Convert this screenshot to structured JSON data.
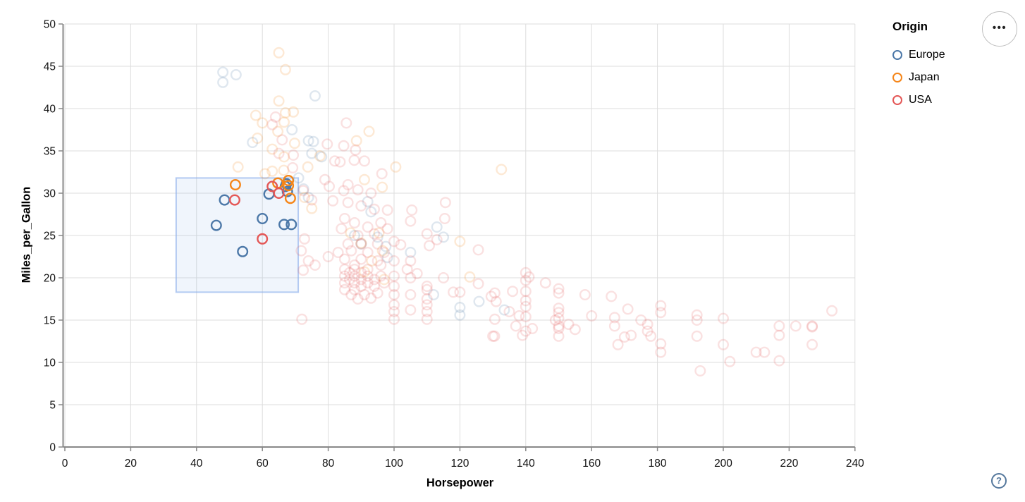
{
  "chart_data": {
    "type": "scatter",
    "xlabel": "Horsepower",
    "ylabel": "Miles_per_Gallon",
    "xlim": [
      0,
      240
    ],
    "ylim": [
      0,
      50
    ],
    "x_ticks": [
      0,
      20,
      40,
      60,
      80,
      100,
      120,
      140,
      160,
      180,
      200,
      220,
      240
    ],
    "y_ticks": [
      0,
      5,
      10,
      15,
      20,
      25,
      30,
      35,
      40,
      45,
      50
    ],
    "grid": true,
    "legend": {
      "title": "Origin",
      "position": "top-right",
      "entries": [
        {
          "label": "Europe",
          "color": "#4c78a8"
        },
        {
          "label": "Japan",
          "color": "#f58518"
        },
        {
          "label": "USA",
          "color": "#e45756"
        }
      ]
    },
    "origins": [
      "Europe",
      "Japan",
      "USA"
    ],
    "colors": [
      "#4c78a8",
      "#f58518",
      "#e45756"
    ],
    "unselected_opacity": 0.18,
    "brush": {
      "x": [
        33.8,
        70.9
      ],
      "y": [
        18.3,
        31.8
      ]
    },
    "points": [
      [
        46,
        26.2,
        0,
        1
      ],
      [
        48.5,
        29.2,
        0,
        1
      ],
      [
        54,
        23.1,
        0,
        1
      ],
      [
        60,
        27,
        0,
        1
      ],
      [
        62,
        29.9,
        0,
        1
      ],
      [
        67,
        30.8,
        0,
        1
      ],
      [
        67.3,
        31.1,
        0,
        1
      ],
      [
        67.6,
        30.2,
        0,
        1
      ],
      [
        66.6,
        26.3,
        0,
        1
      ],
      [
        68.8,
        26.3,
        0,
        1
      ],
      [
        51.8,
        31,
        1,
        1
      ],
      [
        64.7,
        31.2,
        1,
        1
      ],
      [
        67.9,
        31.5,
        1,
        1
      ],
      [
        67.9,
        30.9,
        1,
        1
      ],
      [
        68.5,
        29.4,
        1,
        1
      ],
      [
        51.6,
        29.2,
        2,
        1
      ],
      [
        63,
        30.8,
        2,
        1
      ],
      [
        65,
        30,
        2,
        1
      ],
      [
        60,
        24.6,
        2,
        1
      ],
      [
        48,
        43.1,
        0,
        0
      ],
      [
        48,
        44.3,
        0,
        0
      ],
      [
        52,
        44,
        0,
        0
      ],
      [
        76,
        41.5,
        0,
        0
      ],
      [
        57,
        36,
        0,
        0
      ],
      [
        69,
        37.5,
        0,
        0
      ],
      [
        74,
        36.2,
        0,
        0
      ],
      [
        75.5,
        36.1,
        0,
        0
      ],
      [
        75,
        34.7,
        0,
        0
      ],
      [
        78,
        34.3,
        0,
        0
      ],
      [
        71,
        31.8,
        0,
        0
      ],
      [
        72.5,
        30.5,
        0,
        0
      ],
      [
        74,
        29.5,
        0,
        0
      ],
      [
        92,
        29,
        0,
        0
      ],
      [
        93,
        27.8,
        0,
        0
      ],
      [
        88,
        25,
        0,
        0
      ],
      [
        95,
        24.8,
        0,
        0
      ],
      [
        90,
        24,
        0,
        0
      ],
      [
        113,
        26,
        0,
        0
      ],
      [
        115,
        24.8,
        0,
        0
      ],
      [
        97.5,
        23.7,
        0,
        0
      ],
      [
        98,
        22.4,
        0,
        0
      ],
      [
        105,
        23,
        0,
        0
      ],
      [
        112,
        18,
        0,
        0
      ],
      [
        120,
        16.5,
        0,
        0
      ],
      [
        125.8,
        17.2,
        0,
        0
      ],
      [
        133.5,
        16.2,
        0,
        0
      ],
      [
        120,
        15.6,
        0,
        0
      ],
      [
        65,
        46.6,
        1,
        0
      ],
      [
        67,
        44.6,
        1,
        0
      ],
      [
        65,
        40.9,
        1,
        0
      ],
      [
        67,
        39.5,
        1,
        0
      ],
      [
        58,
        39.2,
        1,
        0
      ],
      [
        69.4,
        39.6,
        1,
        0
      ],
      [
        60,
        38.3,
        1,
        0
      ],
      [
        66.6,
        38.4,
        1,
        0
      ],
      [
        58.5,
        36.5,
        1,
        0
      ],
      [
        64.7,
        37.3,
        1,
        0
      ],
      [
        69.8,
        35.9,
        1,
        0
      ],
      [
        63,
        35.2,
        1,
        0
      ],
      [
        66.6,
        34.3,
        1,
        0
      ],
      [
        77.5,
        34.4,
        1,
        0
      ],
      [
        92.4,
        37.3,
        1,
        0
      ],
      [
        88.6,
        36.2,
        1,
        0
      ],
      [
        52.6,
        33.1,
        1,
        0
      ],
      [
        60.8,
        32.3,
        1,
        0
      ],
      [
        66.5,
        32.7,
        1,
        0
      ],
      [
        73.8,
        33.1,
        1,
        0
      ],
      [
        100.5,
        33.1,
        1,
        0
      ],
      [
        132.6,
        32.8,
        1,
        0
      ],
      [
        63,
        32.6,
        1,
        0
      ],
      [
        72.8,
        29.5,
        1,
        0
      ],
      [
        75,
        28.2,
        1,
        0
      ],
      [
        96.4,
        30.7,
        1,
        0
      ],
      [
        91,
        31.6,
        1,
        0
      ],
      [
        86.8,
        25.3,
        1,
        0
      ],
      [
        95.4,
        25.3,
        1,
        0
      ],
      [
        90,
        24.1,
        1,
        0
      ],
      [
        96.5,
        23.2,
        1,
        0
      ],
      [
        93.2,
        22,
        1,
        0
      ],
      [
        120,
        24.3,
        1,
        0
      ],
      [
        123,
        20.1,
        1,
        0
      ],
      [
        97,
        19.8,
        1,
        0
      ],
      [
        91,
        20.7,
        1,
        0
      ],
      [
        64,
        39,
        2,
        0
      ],
      [
        63,
        38.1,
        2,
        0
      ],
      [
        66,
        36.3,
        2,
        0
      ],
      [
        65,
        34.7,
        2,
        0
      ],
      [
        69.4,
        34.5,
        2,
        0
      ],
      [
        79.7,
        35.8,
        2,
        0
      ],
      [
        85.5,
        38.3,
        2,
        0
      ],
      [
        84.7,
        35.6,
        2,
        0
      ],
      [
        88.3,
        35.1,
        2,
        0
      ],
      [
        91,
        33.8,
        2,
        0
      ],
      [
        83.6,
        33.7,
        2,
        0
      ],
      [
        87.9,
        33.9,
        2,
        0
      ],
      [
        96.3,
        32.3,
        2,
        0
      ],
      [
        69.2,
        33,
        2,
        0
      ],
      [
        82,
        33.8,
        2,
        0
      ],
      [
        86,
        31,
        2,
        0
      ],
      [
        89,
        30.4,
        2,
        0
      ],
      [
        93,
        30,
        2,
        0
      ],
      [
        79,
        31.6,
        2,
        0
      ],
      [
        80.3,
        30.8,
        2,
        0
      ],
      [
        84.7,
        30.3,
        2,
        0
      ],
      [
        81.4,
        29.1,
        2,
        0
      ],
      [
        86,
        28.9,
        2,
        0
      ],
      [
        90,
        28.5,
        2,
        0
      ],
      [
        94,
        28.1,
        2,
        0
      ],
      [
        98,
        28,
        2,
        0
      ],
      [
        105.4,
        28,
        2,
        0
      ],
      [
        115.6,
        28.9,
        2,
        0
      ],
      [
        105,
        26.7,
        2,
        0
      ],
      [
        115.4,
        27,
        2,
        0
      ],
      [
        110,
        25.2,
        2,
        0
      ],
      [
        110.7,
        23.8,
        2,
        0
      ],
      [
        125.6,
        23.3,
        2,
        0
      ],
      [
        85,
        27,
        2,
        0
      ],
      [
        88,
        26.5,
        2,
        0
      ],
      [
        92,
        26,
        2,
        0
      ],
      [
        96,
        26.5,
        2,
        0
      ],
      [
        84,
        25.8,
        2,
        0
      ],
      [
        89,
        25,
        2,
        0
      ],
      [
        94,
        25.2,
        2,
        0
      ],
      [
        98,
        25.8,
        2,
        0
      ],
      [
        86,
        24,
        2,
        0
      ],
      [
        90,
        24,
        2,
        0
      ],
      [
        95,
        24,
        2,
        0
      ],
      [
        100,
        24.3,
        2,
        0
      ],
      [
        83,
        23,
        2,
        0
      ],
      [
        87,
        23.2,
        2,
        0
      ],
      [
        92,
        23,
        2,
        0
      ],
      [
        97,
        23,
        2,
        0
      ],
      [
        85,
        22.2,
        2,
        0
      ],
      [
        90,
        22.2,
        2,
        0
      ],
      [
        95,
        22,
        2,
        0
      ],
      [
        100,
        22,
        2,
        0
      ],
      [
        80,
        22.5,
        2,
        0
      ],
      [
        102,
        23.9,
        2,
        0
      ],
      [
        72.8,
        24.6,
        2,
        0
      ],
      [
        72.4,
        30.3,
        2,
        0
      ],
      [
        75,
        29.2,
        2,
        0
      ],
      [
        113,
        24.5,
        2,
        0
      ],
      [
        85,
        21,
        2,
        0
      ],
      [
        85,
        20.2,
        2,
        0
      ],
      [
        85,
        19.4,
        2,
        0
      ],
      [
        85,
        18.6,
        2,
        0
      ],
      [
        86.5,
        20.6,
        2,
        0
      ],
      [
        86.5,
        19.8,
        2,
        0
      ],
      [
        88,
        21,
        2,
        0
      ],
      [
        88,
        20.2,
        2,
        0
      ],
      [
        88,
        19.4,
        2,
        0
      ],
      [
        88,
        18.6,
        2,
        0
      ],
      [
        90,
        20.6,
        2,
        0
      ],
      [
        90,
        19.8,
        2,
        0
      ],
      [
        90,
        19,
        2,
        0
      ],
      [
        92,
        21,
        2,
        0
      ],
      [
        92,
        20.2,
        2,
        0
      ],
      [
        92,
        19.4,
        2,
        0
      ],
      [
        94,
        19.8,
        2,
        0
      ],
      [
        94,
        19,
        2,
        0
      ],
      [
        96,
        20.2,
        2,
        0
      ],
      [
        97,
        19.4,
        2,
        0
      ],
      [
        87,
        18,
        2,
        0
      ],
      [
        91,
        18,
        2,
        0
      ],
      [
        95,
        18.2,
        2,
        0
      ],
      [
        89,
        17.5,
        2,
        0
      ],
      [
        93,
        17.6,
        2,
        0
      ],
      [
        88,
        21.5,
        2,
        0
      ],
      [
        96,
        21.5,
        2,
        0
      ],
      [
        72.4,
        20.9,
        2,
        0
      ],
      [
        74,
        22,
        2,
        0
      ],
      [
        71.8,
        23.2,
        2,
        0
      ],
      [
        76,
        21.5,
        2,
        0
      ],
      [
        104,
        21,
        2,
        0
      ],
      [
        107,
        20.5,
        2,
        0
      ],
      [
        140,
        20.6,
        2,
        0
      ],
      [
        141,
        20.1,
        2,
        0
      ],
      [
        146,
        19.4,
        2,
        0
      ],
      [
        100,
        20.2,
        2,
        0
      ],
      [
        100,
        19,
        2,
        0
      ],
      [
        100,
        18,
        2,
        0
      ],
      [
        100,
        16.8,
        2,
        0
      ],
      [
        100,
        16,
        2,
        0
      ],
      [
        100,
        15.1,
        2,
        0
      ],
      [
        105,
        22,
        2,
        0
      ],
      [
        105,
        20,
        2,
        0
      ],
      [
        105,
        18,
        2,
        0
      ],
      [
        105,
        16.2,
        2,
        0
      ],
      [
        110,
        19,
        2,
        0
      ],
      [
        110,
        18.6,
        2,
        0
      ],
      [
        110,
        17.5,
        2,
        0
      ],
      [
        110,
        16.8,
        2,
        0
      ],
      [
        110,
        16,
        2,
        0
      ],
      [
        110,
        15.1,
        2,
        0
      ],
      [
        118,
        18.3,
        2,
        0
      ],
      [
        120,
        18.3,
        2,
        0
      ],
      [
        115,
        20,
        2,
        0
      ],
      [
        72,
        15.1,
        2,
        0
      ],
      [
        125.6,
        19.3,
        2,
        0
      ],
      [
        129.5,
        17.8,
        2,
        0
      ],
      [
        130.6,
        18.2,
        2,
        0
      ],
      [
        131,
        17.2,
        2,
        0
      ],
      [
        136,
        18.4,
        2,
        0
      ],
      [
        130.6,
        15.1,
        2,
        0
      ],
      [
        130,
        13.1,
        2,
        0
      ],
      [
        130.5,
        13.1,
        2,
        0
      ],
      [
        137,
        14.3,
        2,
        0
      ],
      [
        139,
        13.2,
        2,
        0
      ],
      [
        140,
        13.7,
        2,
        0
      ],
      [
        142,
        14,
        2,
        0
      ],
      [
        135,
        16,
        2,
        0
      ],
      [
        138,
        15.5,
        2,
        0
      ],
      [
        140,
        19.7,
        2,
        0
      ],
      [
        140,
        18.4,
        2,
        0
      ],
      [
        140,
        17.3,
        2,
        0
      ],
      [
        140,
        16.6,
        2,
        0
      ],
      [
        140,
        15.4,
        2,
        0
      ],
      [
        150,
        18.7,
        2,
        0
      ],
      [
        150,
        18.2,
        2,
        0
      ],
      [
        150,
        16.4,
        2,
        0
      ],
      [
        150,
        15.9,
        2,
        0
      ],
      [
        150,
        15.2,
        2,
        0
      ],
      [
        150,
        14.3,
        2,
        0
      ],
      [
        150,
        14,
        2,
        0
      ],
      [
        150,
        13.1,
        2,
        0
      ],
      [
        149,
        15,
        2,
        0
      ],
      [
        153,
        14.5,
        2,
        0
      ],
      [
        155,
        13.9,
        2,
        0
      ],
      [
        158,
        18,
        2,
        0
      ],
      [
        160,
        15.5,
        2,
        0
      ],
      [
        166,
        17.8,
        2,
        0
      ],
      [
        167,
        15.3,
        2,
        0
      ],
      [
        167,
        14.3,
        2,
        0
      ],
      [
        168,
        12.1,
        2,
        0
      ],
      [
        171,
        16.3,
        2,
        0
      ],
      [
        172,
        13.2,
        2,
        0
      ],
      [
        177,
        14.5,
        2,
        0
      ],
      [
        177,
        13.7,
        2,
        0
      ],
      [
        178,
        13.1,
        2,
        0
      ],
      [
        181,
        16.7,
        2,
        0
      ],
      [
        181,
        15.9,
        2,
        0
      ],
      [
        181,
        12.2,
        2,
        0
      ],
      [
        181,
        11.2,
        2,
        0
      ],
      [
        175,
        15,
        2,
        0
      ],
      [
        170,
        13,
        2,
        0
      ],
      [
        192,
        15.6,
        2,
        0
      ],
      [
        192,
        15,
        2,
        0
      ],
      [
        192,
        13.1,
        2,
        0
      ],
      [
        200,
        15.2,
        2,
        0
      ],
      [
        200,
        12.1,
        2,
        0
      ],
      [
        193,
        9,
        2,
        0
      ],
      [
        202,
        10.1,
        2,
        0
      ],
      [
        210,
        11.2,
        2,
        0
      ],
      [
        212.5,
        11.2,
        2,
        0
      ],
      [
        217,
        10.2,
        2,
        0
      ],
      [
        217,
        14.3,
        2,
        0
      ],
      [
        217,
        13.2,
        2,
        0
      ],
      [
        222,
        14.3,
        2,
        0
      ],
      [
        227,
        14.3,
        2,
        0
      ],
      [
        227,
        14.2,
        2,
        0
      ],
      [
        227,
        12.1,
        2,
        0
      ],
      [
        233,
        16.1,
        2,
        0
      ]
    ]
  },
  "icons": {
    "options_menu": "•••",
    "help": "?"
  }
}
